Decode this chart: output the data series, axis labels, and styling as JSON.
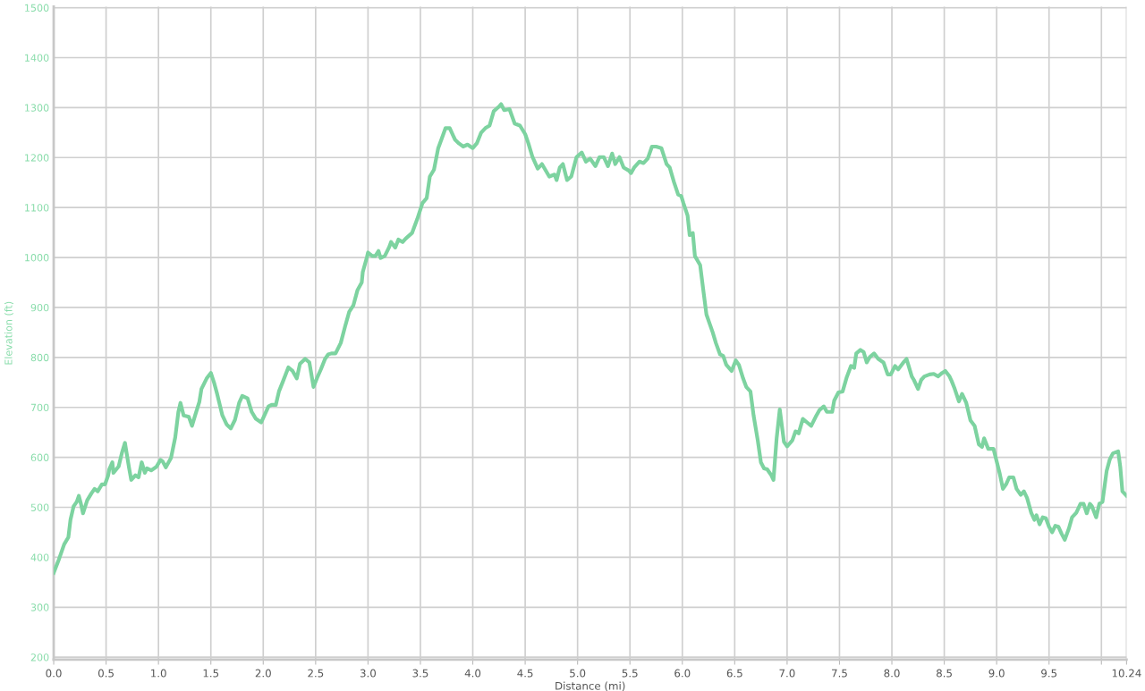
{
  "chart_data": {
    "type": "line",
    "xlabel": "Distance (mi)",
    "ylabel": "Elevation (ft)",
    "xlim": [
      0,
      10.24
    ],
    "ylim": [
      195,
      1502
    ],
    "xticks": [
      {
        "value": 0,
        "label": "0.0"
      },
      {
        "value": 0.5,
        "label": "0.5"
      },
      {
        "value": 1,
        "label": "1.0"
      },
      {
        "value": 1.5,
        "label": "1.5"
      },
      {
        "value": 2,
        "label": "2.0"
      },
      {
        "value": 2.5,
        "label": "2.5"
      },
      {
        "value": 3,
        "label": "3.0"
      },
      {
        "value": 3.5,
        "label": "3.5"
      },
      {
        "value": 4,
        "label": "4.0"
      },
      {
        "value": 4.5,
        "label": "4.5"
      },
      {
        "value": 5,
        "label": "5.0"
      },
      {
        "value": 5.5,
        "label": "5.5"
      },
      {
        "value": 6,
        "label": "6.0"
      },
      {
        "value": 6.5,
        "label": "6.5"
      },
      {
        "value": 7,
        "label": "7.0"
      },
      {
        "value": 7.5,
        "label": "7.5"
      },
      {
        "value": 8,
        "label": "8.0"
      },
      {
        "value": 8.5,
        "label": "8.5"
      },
      {
        "value": 9,
        "label": "9.0"
      },
      {
        "value": 9.5,
        "label": "9.5"
      },
      {
        "value": 10,
        "label": null
      },
      {
        "value": 10.24,
        "label": "10.24"
      }
    ],
    "yticks": [
      200,
      300,
      400,
      500,
      600,
      700,
      800,
      900,
      1000,
      1100,
      1200,
      1300,
      1400,
      1500
    ],
    "grid": true,
    "marker": "none",
    "line_style": "solid",
    "series": [
      {
        "color": "#7dd3a0",
        "x": [
          0.0,
          0.05,
          0.1,
          0.14,
          0.16,
          0.19,
          0.22,
          0.24,
          0.26,
          0.28,
          0.32,
          0.36,
          0.39,
          0.42,
          0.46,
          0.49,
          0.52,
          0.53,
          0.56,
          0.57,
          0.62,
          0.65,
          0.68,
          0.72,
          0.74,
          0.78,
          0.81,
          0.84,
          0.87,
          0.89,
          0.93,
          0.98,
          1.02,
          1.04,
          1.07,
          1.12,
          1.16,
          1.19,
          1.21,
          1.24,
          1.29,
          1.32,
          1.35,
          1.39,
          1.41,
          1.46,
          1.5,
          1.53,
          1.56,
          1.61,
          1.65,
          1.69,
          1.73,
          1.77,
          1.8,
          1.85,
          1.89,
          1.93,
          1.98,
          2.02,
          2.05,
          2.08,
          2.12,
          2.15,
          2.19,
          2.24,
          2.28,
          2.32,
          2.35,
          2.4,
          2.44,
          2.48,
          2.52,
          2.55,
          2.59,
          2.62,
          2.65,
          2.69,
          2.74,
          2.78,
          2.82,
          2.86,
          2.9,
          2.94,
          2.95,
          2.99,
          3.0,
          3.04,
          3.07,
          3.1,
          3.12,
          3.16,
          3.2,
          3.22,
          3.26,
          3.29,
          3.33,
          3.36,
          3.42,
          3.47,
          3.52,
          3.56,
          3.59,
          3.63,
          3.67,
          3.7,
          3.74,
          3.78,
          3.83,
          3.87,
          3.91,
          3.95,
          4.0,
          4.04,
          4.08,
          4.12,
          4.16,
          4.2,
          4.25,
          4.27,
          4.3,
          4.35,
          4.4,
          4.45,
          4.5,
          4.53,
          4.57,
          4.62,
          4.66,
          4.73,
          4.78,
          4.8,
          4.83,
          4.86,
          4.9,
          4.94,
          4.99,
          5.04,
          5.08,
          5.12,
          5.17,
          5.21,
          5.25,
          5.29,
          5.33,
          5.36,
          5.4,
          5.44,
          5.49,
          5.51,
          5.54,
          5.59,
          5.63,
          5.67,
          5.71,
          5.75,
          5.8,
          5.85,
          5.88,
          5.92,
          5.96,
          5.99,
          6.01,
          6.05,
          6.07,
          6.1,
          6.12,
          6.17,
          6.2,
          6.23,
          6.26,
          6.29,
          6.32,
          6.36,
          6.39,
          6.42,
          6.47,
          6.51,
          6.54,
          6.58,
          6.61,
          6.65,
          6.68,
          6.72,
          6.75,
          6.78,
          6.81,
          6.85,
          6.87,
          6.9,
          6.93,
          6.97,
          7.0,
          7.05,
          7.08,
          7.11,
          7.15,
          7.19,
          7.23,
          7.28,
          7.31,
          7.35,
          7.38,
          7.43,
          7.45,
          7.49,
          7.53,
          7.57,
          7.61,
          7.64,
          7.66,
          7.7,
          7.73,
          7.76,
          7.79,
          7.83,
          7.87,
          7.92,
          7.96,
          7.99,
          8.03,
          8.06,
          8.11,
          8.14,
          8.19,
          8.21,
          8.25,
          8.28,
          8.31,
          8.36,
          8.4,
          8.44,
          8.48,
          8.51,
          8.55,
          8.57,
          8.6,
          8.64,
          8.67,
          8.71,
          8.75,
          8.79,
          8.83,
          8.86,
          8.88,
          8.92,
          8.97,
          9.03,
          9.06,
          9.09,
          9.12,
          9.16,
          9.19,
          9.23,
          9.26,
          9.29,
          9.33,
          9.36,
          9.38,
          9.41,
          9.44,
          9.47,
          9.5,
          9.53,
          9.56,
          9.59,
          9.62,
          9.65,
          9.69,
          9.72,
          9.76,
          9.8,
          9.83,
          9.86,
          9.89,
          9.91,
          9.95,
          9.98,
          10.01,
          10.05,
          10.08,
          10.11,
          10.16,
          10.18,
          10.2,
          10.24
        ],
        "values": [
          369,
          396,
          426,
          440,
          475,
          502,
          511,
          523,
          507,
          488,
          514,
          528,
          537,
          532,
          546,
          546,
          564,
          576,
          590,
          569,
          582,
          608,
          629,
          578,
          555,
          564,
          560,
          590,
          569,
          578,
          574,
          581,
          595,
          592,
          580,
          599,
          640,
          691,
          709,
          684,
          681,
          663,
          684,
          711,
          737,
          758,
          769,
          750,
          727,
          684,
          666,
          658,
          675,
          709,
          723,
          718,
          691,
          677,
          670,
          688,
          702,
          705,
          705,
          732,
          753,
          780,
          773,
          758,
          787,
          797,
          790,
          741,
          762,
          776,
          797,
          806,
          808,
          808,
          829,
          861,
          891,
          904,
          935,
          950,
          971,
          1001,
          1010,
          1003,
          1003,
          1013,
          999,
          1003,
          1020,
          1031,
          1020,
          1036,
          1031,
          1038,
          1049,
          1077,
          1109,
          1119,
          1162,
          1176,
          1219,
          1236,
          1259,
          1259,
          1236,
          1228,
          1222,
          1226,
          1219,
          1229,
          1250,
          1259,
          1264,
          1293,
          1302,
          1307,
          1295,
          1297,
          1268,
          1264,
          1247,
          1229,
          1201,
          1178,
          1187,
          1162,
          1166,
          1155,
          1180,
          1187,
          1155,
          1162,
          1201,
          1210,
          1192,
          1198,
          1183,
          1201,
          1201,
          1183,
          1208,
          1187,
          1201,
          1180,
          1174,
          1169,
          1180,
          1192,
          1189,
          1198,
          1222,
          1222,
          1219,
          1187,
          1180,
          1151,
          1126,
          1123,
          1109,
          1084,
          1045,
          1049,
          1003,
          985,
          935,
          886,
          868,
          850,
          829,
          806,
          803,
          785,
          773,
          794,
          785,
          758,
          741,
          732,
          684,
          634,
          590,
          578,
          576,
          564,
          555,
          638,
          696,
          631,
          622,
          634,
          652,
          648,
          677,
          670,
          663,
          684,
          695,
          702,
          691,
          691,
          714,
          730,
          732,
          761,
          783,
          779,
          808,
          815,
          811,
          790,
          801,
          808,
          797,
          790,
          766,
          766,
          783,
          776,
          790,
          797,
          762,
          755,
          737,
          755,
          762,
          766,
          767,
          762,
          769,
          773,
          762,
          753,
          737,
          712,
          727,
          709,
          674,
          663,
          626,
          621,
          638,
          617,
          617,
          567,
          537,
          546,
          560,
          560,
          537,
          525,
          532,
          519,
          489,
          475,
          484,
          466,
          480,
          478,
          461,
          450,
          463,
          461,
          447,
          435,
          458,
          480,
          489,
          507,
          507,
          488,
          507,
          502,
          480,
          507,
          511,
          573,
          596,
          608,
          612,
          581,
          532,
          523
        ]
      }
    ]
  }
}
